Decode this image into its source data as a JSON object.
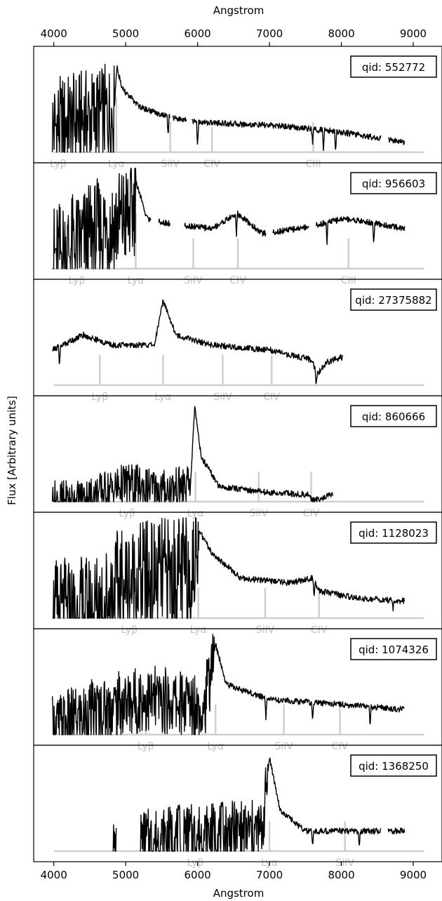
{
  "figure": {
    "top_axis_label": "Angstrom",
    "bottom_axis_label": "Angstrom",
    "ylabel": "Flux [Arbitrary units]",
    "xlim": [
      3720,
      9400
    ],
    "x_ticks": [
      "4000",
      "5000",
      "6000",
      "7000",
      "8000",
      "9000"
    ],
    "x_tick_values": [
      4000,
      5000,
      6000,
      7000,
      8000,
      9000
    ],
    "line_color": "#000000",
    "marker_color": "#cfcfcf"
  },
  "chart_data": [
    {
      "type": "line",
      "label": "qid: 552772",
      "ylim": [
        0,
        1.05
      ],
      "x_range": [
        3980,
        8880
      ],
      "segments": [
        [
          3980,
          5620
        ],
        [
          5650,
          5850
        ],
        [
          5920,
          8550
        ],
        [
          8650,
          8880
        ]
      ],
      "baseline": 0.05,
      "forest_end": 4840,
      "forest_amp": 0.5,
      "continuum": [
        [
          3980,
          0.3
        ],
        [
          4840,
          0.45
        ],
        [
          4860,
          0.7
        ],
        [
          4880,
          0.9
        ],
        [
          4950,
          0.68
        ],
        [
          5200,
          0.5
        ],
        [
          5600,
          0.4
        ],
        [
          6000,
          0.35
        ],
        [
          6600,
          0.33
        ],
        [
          7200,
          0.31
        ],
        [
          8000,
          0.25
        ],
        [
          8880,
          0.15
        ]
      ],
      "features": [
        [
          5590,
          0.18
        ],
        [
          6000,
          0.25
        ],
        [
          7600,
          0.15
        ],
        [
          7750,
          0.2
        ],
        [
          7920,
          0.18
        ]
      ],
      "emission_lines": [
        {
          "name": "Lyβ",
          "x": 4060,
          "h": 0.55
        },
        {
          "name": "Lyα",
          "x": 4870,
          "h": 0.55
        },
        {
          "name": "SiIV",
          "x": 5620,
          "h": 0.3
        },
        {
          "name": "CIV",
          "x": 6200,
          "h": 0.25
        },
        {
          "name": "CIII",
          "x": 7610,
          "h": 0.3
        }
      ]
    },
    {
      "type": "line",
      "label": "qid: 956603",
      "ylim": [
        0,
        1.05
      ],
      "x_range": [
        3980,
        8880
      ],
      "segments": [
        [
          3980,
          5350
        ],
        [
          5460,
          5620
        ],
        [
          5820,
          6950
        ],
        [
          7050,
          7550
        ],
        [
          7650,
          8880
        ]
      ],
      "baseline": 0.05,
      "forest_end": 5140,
      "forest_amp": 0.55,
      "continuum": [
        [
          3980,
          0.15
        ],
        [
          5100,
          0.6
        ],
        [
          5150,
          0.9
        ],
        [
          5300,
          0.55
        ],
        [
          5600,
          0.5
        ],
        [
          6200,
          0.45
        ],
        [
          6550,
          0.6
        ],
        [
          6900,
          0.4
        ],
        [
          7400,
          0.45
        ],
        [
          8050,
          0.55
        ],
        [
          8880,
          0.45
        ]
      ],
      "features": [
        [
          6540,
          0.2
        ],
        [
          7000,
          0.2
        ],
        [
          7800,
          0.2
        ],
        [
          8450,
          0.2
        ]
      ],
      "emission_lines": [
        {
          "name": "Lyβ",
          "x": 4320,
          "h": 0.55
        },
        {
          "name": "Lyα",
          "x": 5140,
          "h": 0.55
        },
        {
          "name": "SiIV",
          "x": 5940,
          "h": 0.3
        },
        {
          "name": "CIV",
          "x": 6560,
          "h": 0.3
        },
        {
          "name": "CIII",
          "x": 8100,
          "h": 0.3
        }
      ]
    },
    {
      "type": "line",
      "label": "qid: 27375882",
      "ylim": [
        0,
        1.05
      ],
      "x_range": [
        3980,
        8020
      ],
      "segments": [
        [
          3980,
          8020
        ]
      ],
      "baseline": 0.05,
      "forest_end": 3980,
      "forest_amp": 0.0,
      "continuum": [
        [
          3980,
          0.4
        ],
        [
          4400,
          0.55
        ],
        [
          4800,
          0.45
        ],
        [
          5400,
          0.45
        ],
        [
          5520,
          0.9
        ],
        [
          5700,
          0.55
        ],
        [
          6200,
          0.45
        ],
        [
          7000,
          0.4
        ],
        [
          7600,
          0.3
        ],
        [
          7650,
          0.15
        ],
        [
          7800,
          0.28
        ],
        [
          8020,
          0.33
        ]
      ],
      "features": [
        [
          4080,
          0.2
        ],
        [
          7650,
          0.1
        ]
      ],
      "emission_lines": [
        {
          "name": "Lyβ",
          "x": 4640,
          "h": 0.3
        },
        {
          "name": "Lyα",
          "x": 5520,
          "h": 0.3
        },
        {
          "name": "SiIV",
          "x": 6350,
          "h": 0.3
        },
        {
          "name": "CIV",
          "x": 7030,
          "h": 0.3
        }
      ]
    },
    {
      "type": "line",
      "label": "qid: 860666",
      "ylim": [
        0,
        1.05
      ],
      "x_range": [
        3980,
        7880
      ],
      "segments": [
        [
          3980,
          7880
        ]
      ],
      "baseline": 0.05,
      "forest_end": 5900,
      "forest_amp": 0.22,
      "continuum": [
        [
          3980,
          0.05
        ],
        [
          4300,
          0.05
        ],
        [
          4600,
          0.12
        ],
        [
          5000,
          0.22
        ],
        [
          5500,
          0.16
        ],
        [
          5900,
          0.2
        ],
        [
          5960,
          1.0
        ],
        [
          6050,
          0.5
        ],
        [
          6300,
          0.2
        ],
        [
          7000,
          0.14
        ],
        [
          7550,
          0.12
        ],
        [
          7600,
          0.06
        ],
        [
          7880,
          0.12
        ]
      ],
      "features": [],
      "emission_lines": [
        {
          "name": "Lyβ",
          "x": 5020,
          "h": 0.3
        },
        {
          "name": "Lyα",
          "x": 5970,
          "h": 0.3
        },
        {
          "name": "SiIV",
          "x": 6850,
          "h": 0.3
        },
        {
          "name": "CIV",
          "x": 7580,
          "h": 0.3
        }
      ]
    },
    {
      "type": "line",
      "label": "qid: 1128023",
      "ylim": [
        0,
        1.05
      ],
      "x_range": [
        3980,
        8880
      ],
      "segments": [
        [
          3980,
          8880
        ]
      ],
      "baseline": 0.05,
      "forest_end": 6020,
      "forest_amp": 0.6,
      "continuum": [
        [
          3980,
          0.05
        ],
        [
          4500,
          0.08
        ],
        [
          5000,
          0.4
        ],
        [
          5950,
          0.5
        ],
        [
          6000,
          0.95
        ],
        [
          6200,
          0.7
        ],
        [
          6600,
          0.45
        ],
        [
          7300,
          0.4
        ],
        [
          7600,
          0.45
        ],
        [
          7700,
          0.32
        ],
        [
          8200,
          0.25
        ],
        [
          8880,
          0.22
        ]
      ],
      "features": [
        [
          7620,
          0.2
        ],
        [
          8720,
          0.1
        ]
      ],
      "emission_lines": [
        {
          "name": "Lyβ",
          "x": 5050,
          "h": 0.3
        },
        {
          "name": "Lyα",
          "x": 6010,
          "h": 0.3
        },
        {
          "name": "SiIV",
          "x": 6940,
          "h": 0.3
        },
        {
          "name": "CIV",
          "x": 7690,
          "h": 0.3
        }
      ]
    },
    {
      "type": "line",
      "label": "qid: 1074326",
      "ylim": [
        0,
        1.05
      ],
      "x_range": [
        3980,
        8880
      ],
      "segments": [
        [
          3980,
          8880
        ]
      ],
      "baseline": 0.05,
      "forest_end": 6240,
      "forest_amp": 0.35,
      "continuum": [
        [
          3980,
          0.1
        ],
        [
          4500,
          0.25
        ],
        [
          5200,
          0.4
        ],
        [
          6100,
          0.35
        ],
        [
          6250,
          0.95
        ],
        [
          6400,
          0.55
        ],
        [
          7000,
          0.4
        ],
        [
          8000,
          0.35
        ],
        [
          8880,
          0.3
        ]
      ],
      "features": [
        [
          6950,
          0.2
        ],
        [
          7600,
          0.2
        ],
        [
          8400,
          0.2
        ]
      ],
      "emission_lines": [
        {
          "name": "Lyβ",
          "x": 5280,
          "h": 0.3
        },
        {
          "name": "Lyα",
          "x": 6250,
          "h": 0.3
        },
        {
          "name": "SiIV",
          "x": 7200,
          "h": 0.3
        },
        {
          "name": "CIV",
          "x": 7980,
          "h": 0.3
        }
      ]
    },
    {
      "type": "line",
      "label": "qid: 1368250",
      "ylim": [
        0,
        1.05
      ],
      "x_range": [
        4820,
        8880
      ],
      "segments": [
        [
          4820,
          4870
        ],
        [
          5200,
          5770
        ],
        [
          5800,
          8550
        ],
        [
          8650,
          8880
        ]
      ],
      "baseline": 0.05,
      "forest_end": 6980,
      "forest_amp": 0.32,
      "continuum": [
        [
          4820,
          0.05
        ],
        [
          5200,
          0.15
        ],
        [
          5770,
          0.2
        ],
        [
          6900,
          0.25
        ],
        [
          7000,
          0.98
        ],
        [
          7150,
          0.45
        ],
        [
          7500,
          0.25
        ],
        [
          8880,
          0.25
        ]
      ],
      "features": [
        [
          7600,
          0.15
        ],
        [
          8250,
          0.15
        ]
      ],
      "emission_lines": [
        {
          "name": "Lyβ",
          "x": 5970,
          "h": 0.3
        },
        {
          "name": "Lyα",
          "x": 7000,
          "h": 0.3
        },
        {
          "name": "SiIV",
          "x": 8050,
          "h": 0.3
        }
      ]
    }
  ]
}
